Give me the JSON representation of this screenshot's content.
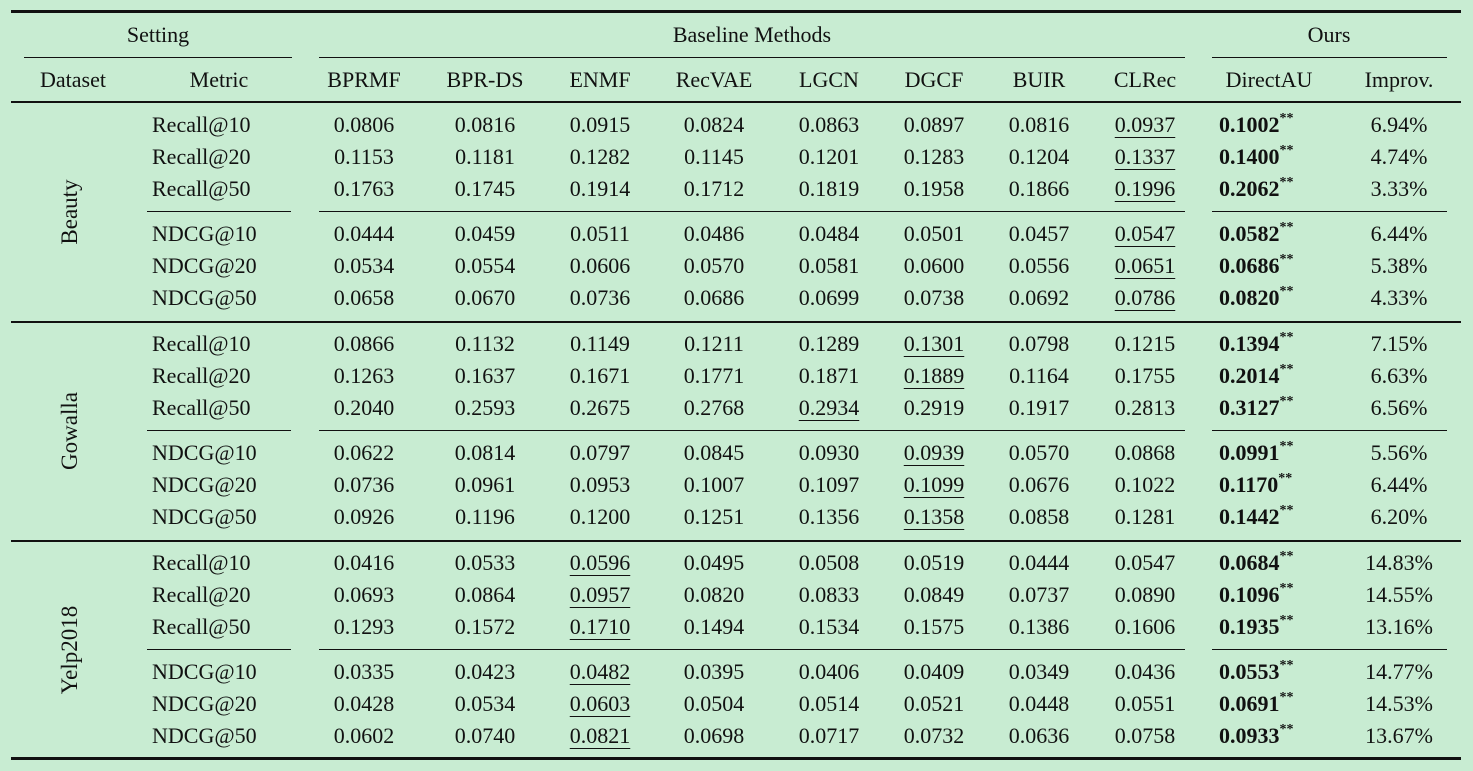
{
  "header": {
    "group_setting": "Setting",
    "group_baselines": "Baseline Methods",
    "group_ours": "Ours",
    "col_dataset": "Dataset",
    "col_metric": "Metric",
    "methods": [
      "BPRMF",
      "BPR-DS",
      "ENMF",
      "RecVAE",
      "LGCN",
      "DGCF",
      "BUIR",
      "CLRec"
    ],
    "ours_method": "DirectAU",
    "improvement": "Improv."
  },
  "significance_mark": "**",
  "datasets": [
    {
      "name": "Beauty",
      "blocks": [
        [
          {
            "metric": "Recall@10",
            "values": [
              "0.0806",
              "0.0816",
              "0.0915",
              "0.0824",
              "0.0863",
              "0.0897",
              "0.0816",
              "0.0937"
            ],
            "best_baseline": 7,
            "ours": "0.1002",
            "improv": "6.94%"
          },
          {
            "metric": "Recall@20",
            "values": [
              "0.1153",
              "0.1181",
              "0.1282",
              "0.1145",
              "0.1201",
              "0.1283",
              "0.1204",
              "0.1337"
            ],
            "best_baseline": 7,
            "ours": "0.1400",
            "improv": "4.74%"
          },
          {
            "metric": "Recall@50",
            "values": [
              "0.1763",
              "0.1745",
              "0.1914",
              "0.1712",
              "0.1819",
              "0.1958",
              "0.1866",
              "0.1996"
            ],
            "best_baseline": 7,
            "ours": "0.2062",
            "improv": "3.33%"
          }
        ],
        [
          {
            "metric": "NDCG@10",
            "values": [
              "0.0444",
              "0.0459",
              "0.0511",
              "0.0486",
              "0.0484",
              "0.0501",
              "0.0457",
              "0.0547"
            ],
            "best_baseline": 7,
            "ours": "0.0582",
            "improv": "6.44%"
          },
          {
            "metric": "NDCG@20",
            "values": [
              "0.0534",
              "0.0554",
              "0.0606",
              "0.0570",
              "0.0581",
              "0.0600",
              "0.0556",
              "0.0651"
            ],
            "best_baseline": 7,
            "ours": "0.0686",
            "improv": "5.38%"
          },
          {
            "metric": "NDCG@50",
            "values": [
              "0.0658",
              "0.0670",
              "0.0736",
              "0.0686",
              "0.0699",
              "0.0738",
              "0.0692",
              "0.0786"
            ],
            "best_baseline": 7,
            "ours": "0.0820",
            "improv": "4.33%"
          }
        ]
      ]
    },
    {
      "name": "Gowalla",
      "blocks": [
        [
          {
            "metric": "Recall@10",
            "values": [
              "0.0866",
              "0.1132",
              "0.1149",
              "0.1211",
              "0.1289",
              "0.1301",
              "0.0798",
              "0.1215"
            ],
            "best_baseline": 5,
            "ours": "0.1394",
            "improv": "7.15%"
          },
          {
            "metric": "Recall@20",
            "values": [
              "0.1263",
              "0.1637",
              "0.1671",
              "0.1771",
              "0.1871",
              "0.1889",
              "0.1164",
              "0.1755"
            ],
            "best_baseline": 5,
            "ours": "0.2014",
            "improv": "6.63%"
          },
          {
            "metric": "Recall@50",
            "values": [
              "0.2040",
              "0.2593",
              "0.2675",
              "0.2768",
              "0.2934",
              "0.2919",
              "0.1917",
              "0.2813"
            ],
            "best_baseline": 4,
            "ours": "0.3127",
            "improv": "6.56%"
          }
        ],
        [
          {
            "metric": "NDCG@10",
            "values": [
              "0.0622",
              "0.0814",
              "0.0797",
              "0.0845",
              "0.0930",
              "0.0939",
              "0.0570",
              "0.0868"
            ],
            "best_baseline": 5,
            "ours": "0.0991",
            "improv": "5.56%"
          },
          {
            "metric": "NDCG@20",
            "values": [
              "0.0736",
              "0.0961",
              "0.0953",
              "0.1007",
              "0.1097",
              "0.1099",
              "0.0676",
              "0.1022"
            ],
            "best_baseline": 5,
            "ours": "0.1170",
            "improv": "6.44%"
          },
          {
            "metric": "NDCG@50",
            "values": [
              "0.0926",
              "0.1196",
              "0.1200",
              "0.1251",
              "0.1356",
              "0.1358",
              "0.0858",
              "0.1281"
            ],
            "best_baseline": 5,
            "ours": "0.1442",
            "improv": "6.20%"
          }
        ]
      ]
    },
    {
      "name": "Yelp2018",
      "blocks": [
        [
          {
            "metric": "Recall@10",
            "values": [
              "0.0416",
              "0.0533",
              "0.0596",
              "0.0495",
              "0.0508",
              "0.0519",
              "0.0444",
              "0.0547"
            ],
            "best_baseline": 2,
            "ours": "0.0684",
            "improv": "14.83%"
          },
          {
            "metric": "Recall@20",
            "values": [
              "0.0693",
              "0.0864",
              "0.0957",
              "0.0820",
              "0.0833",
              "0.0849",
              "0.0737",
              "0.0890"
            ],
            "best_baseline": 2,
            "ours": "0.1096",
            "improv": "14.55%"
          },
          {
            "metric": "Recall@50",
            "values": [
              "0.1293",
              "0.1572",
              "0.1710",
              "0.1494",
              "0.1534",
              "0.1575",
              "0.1386",
              "0.1606"
            ],
            "best_baseline": 2,
            "ours": "0.1935",
            "improv": "13.16%"
          }
        ],
        [
          {
            "metric": "NDCG@10",
            "values": [
              "0.0335",
              "0.0423",
              "0.0482",
              "0.0395",
              "0.0406",
              "0.0409",
              "0.0349",
              "0.0436"
            ],
            "best_baseline": 2,
            "ours": "0.0553",
            "improv": "14.77%"
          },
          {
            "metric": "NDCG@20",
            "values": [
              "0.0428",
              "0.0534",
              "0.0603",
              "0.0504",
              "0.0514",
              "0.0521",
              "0.0448",
              "0.0551"
            ],
            "best_baseline": 2,
            "ours": "0.0691",
            "improv": "14.53%"
          },
          {
            "metric": "NDCG@50",
            "values": [
              "0.0602",
              "0.0740",
              "0.0821",
              "0.0698",
              "0.0717",
              "0.0732",
              "0.0636",
              "0.0758"
            ],
            "best_baseline": 2,
            "ours": "0.0933",
            "improv": "13.67%"
          }
        ]
      ]
    }
  ]
}
